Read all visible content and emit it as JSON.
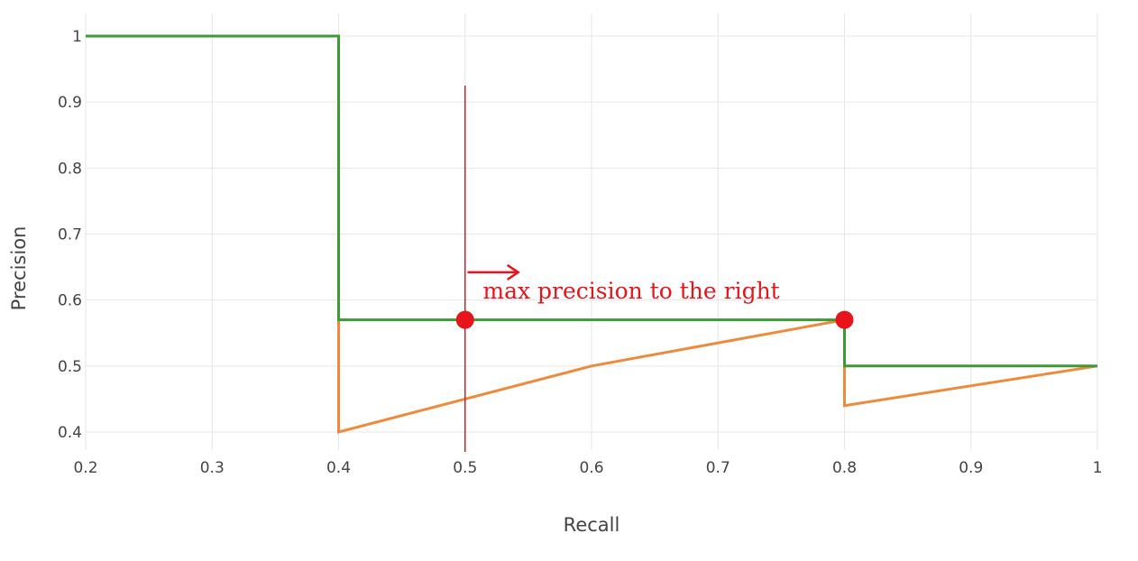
{
  "chart_data": {
    "type": "line",
    "title": "",
    "xlabel": "Recall",
    "ylabel": "Precision",
    "xlim": [
      0.2,
      1.0
    ],
    "ylim": [
      0.4,
      1.0
    ],
    "x_ticks": [
      "0.2",
      "0.3",
      "0.4",
      "0.5",
      "0.6",
      "0.7",
      "0.8",
      "0.9",
      "1"
    ],
    "y_ticks": [
      "0.4",
      "0.5",
      "0.6",
      "0.7",
      "0.8",
      "0.9",
      "1"
    ],
    "grid": true,
    "legend": "none",
    "series": [
      {
        "color": "#ee8a3c",
        "x": [
          0.4,
          0.4,
          0.6,
          0.8,
          0.8,
          1.0
        ],
        "y": [
          0.57,
          0.4,
          0.5,
          0.57,
          0.44,
          0.5
        ]
      },
      {
        "color": "#3d9a36",
        "x": [
          0.2,
          0.4,
          0.4,
          0.8,
          0.8,
          1.0
        ],
        "y": [
          1.0,
          1.0,
          0.57,
          0.57,
          0.5,
          0.5
        ]
      }
    ],
    "annotations": {
      "text": "max precision to the right",
      "color": "#e8141b",
      "vertical_line_x": 0.5,
      "vertical_line_y_range": [
        0.4,
        0.925
      ],
      "arrow": {
        "from": [
          0.502,
          0.642
        ],
        "to": [
          0.542,
          0.642
        ]
      },
      "text_anchor": [
        0.514,
        0.602
      ],
      "points": [
        {
          "x": 0.5,
          "y": 0.57
        },
        {
          "x": 0.8,
          "y": 0.57
        }
      ]
    }
  }
}
